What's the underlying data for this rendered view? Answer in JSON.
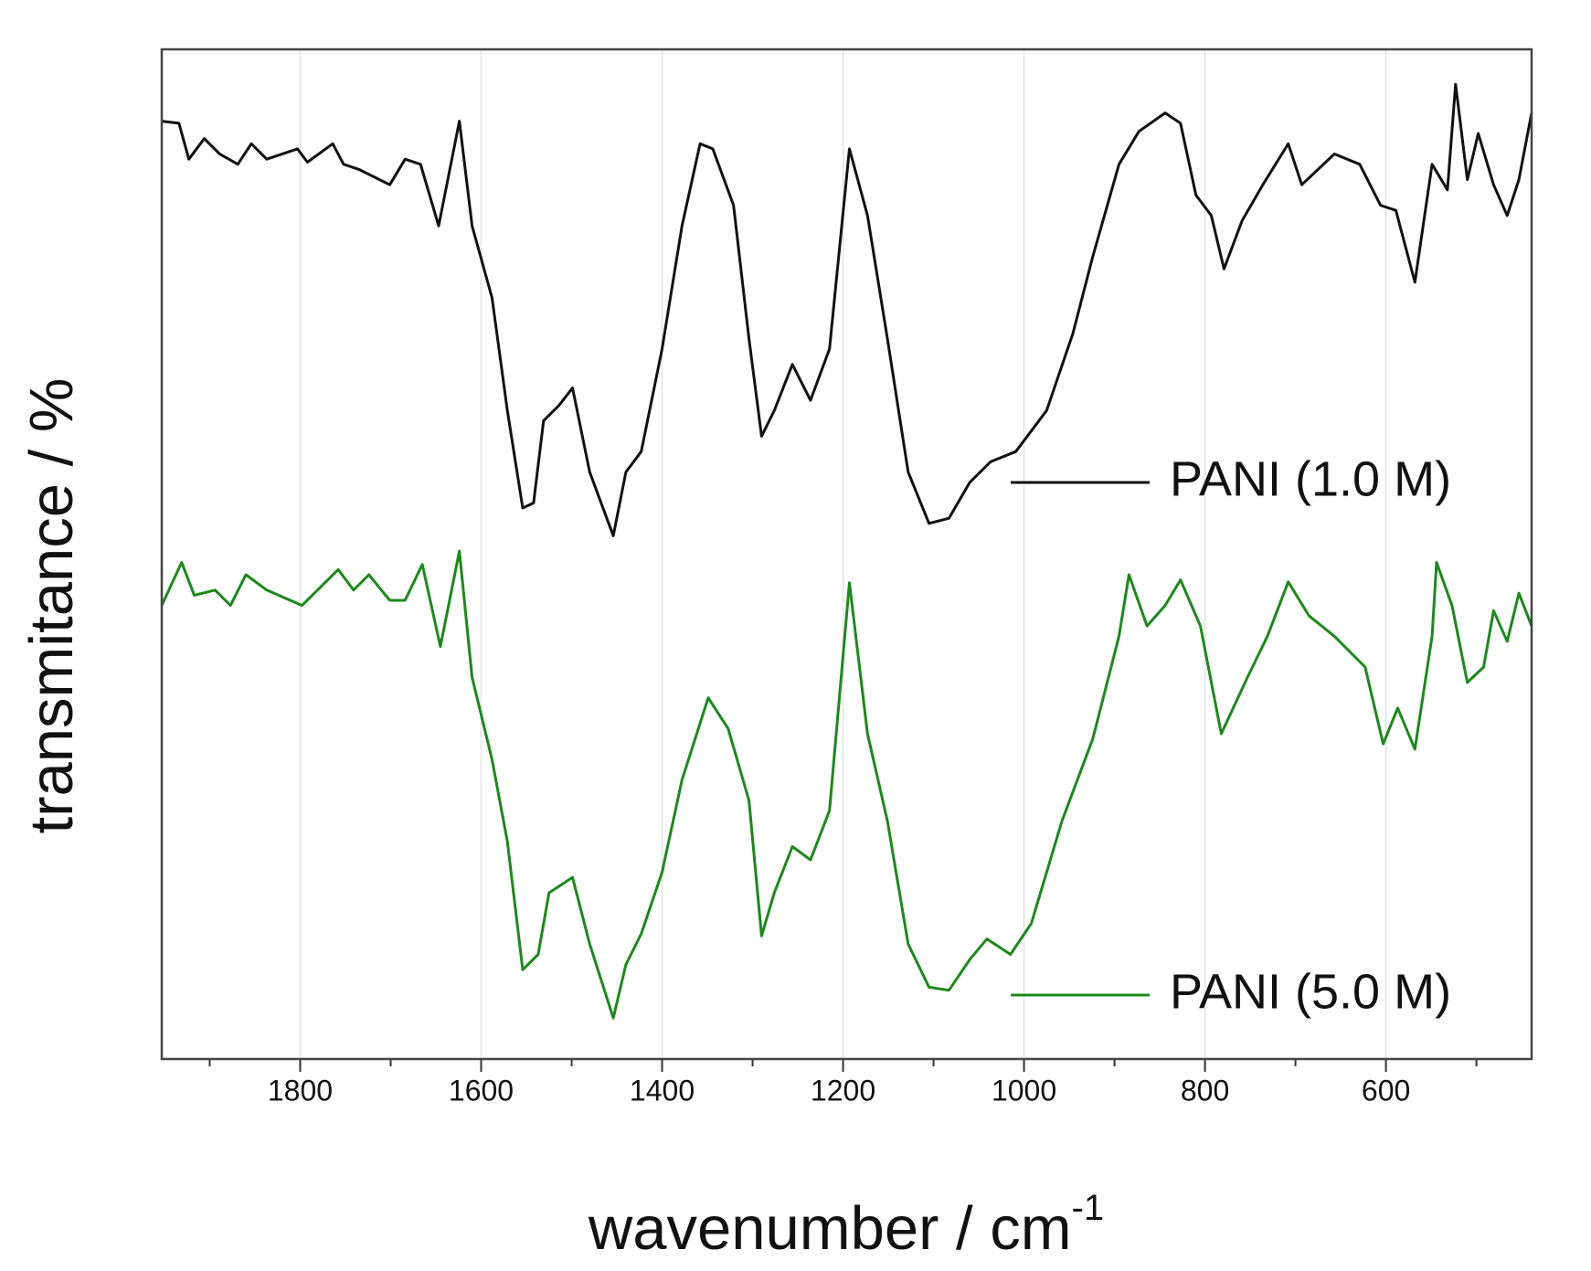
{
  "chart_data": {
    "type": "line",
    "xlabel": "wavenumber / cm",
    "xlabel_sup": "-1",
    "ylabel": "transmitance / %",
    "xlim": [
      1953,
      439
    ],
    "ylim": [
      0,
      984
    ],
    "xticks": [
      1800,
      1600,
      1400,
      1200,
      1000,
      800,
      600
    ],
    "xminorticks": [
      1900,
      1700,
      1500,
      1300,
      1100,
      900,
      700,
      500
    ],
    "grid": true,
    "series": [
      {
        "name": "PANI (1.0 M)",
        "color": "#111111",
        "x": [
          1953,
          1934,
          1923,
          1906,
          1889,
          1869,
          1854,
          1837,
          1803,
          1792,
          1764,
          1752,
          1735,
          1701,
          1684,
          1667,
          1647,
          1624,
          1610,
          1588,
          1571,
          1554,
          1542,
          1531,
          1514,
          1499,
          1480,
          1454,
          1440,
          1423,
          1400,
          1378,
          1358,
          1344,
          1321,
          1304,
          1290,
          1276,
          1256,
          1236,
          1215,
          1193,
          1173,
          1151,
          1128,
          1105,
          1083,
          1060,
          1037,
          1009,
          975,
          946,
          924,
          895,
          873,
          844,
          827,
          810,
          793,
          779,
          759,
          736,
          708,
          693,
          657,
          629,
          606,
          589,
          568,
          549,
          532,
          523,
          510,
          498,
          481,
          466,
          453,
          439
        ],
        "values": [
          914,
          912,
          877,
          897,
          882,
          872,
          892,
          877,
          887,
          874,
          892,
          872,
          867,
          852,
          877,
          872,
          812,
          914,
          812,
          742,
          632,
          537,
          542,
          622,
          637,
          654,
          572,
          510,
          572,
          592,
          692,
          812,
          892,
          887,
          832,
          702,
          607,
          632,
          677,
          642,
          692,
          887,
          822,
          702,
          572,
          522,
          527,
          562,
          582,
          592,
          632,
          707,
          782,
          872,
          904,
          922,
          912,
          842,
          822,
          770,
          817,
          852,
          892,
          852,
          882,
          872,
          832,
          827,
          757,
          872,
          847,
          950,
          857,
          902,
          852,
          822,
          857,
          922
        ]
      },
      {
        "name": "PANI (5.0 M)",
        "color": "#1a8a1a",
        "x": [
          1953,
          1931,
          1917,
          1894,
          1877,
          1860,
          1837,
          1798,
          1758,
          1741,
          1724,
          1701,
          1684,
          1665,
          1645,
          1624,
          1610,
          1588,
          1571,
          1554,
          1537,
          1525,
          1499,
          1480,
          1454,
          1440,
          1423,
          1400,
          1378,
          1349,
          1327,
          1304,
          1290,
          1276,
          1256,
          1236,
          1215,
          1193,
          1173,
          1151,
          1128,
          1105,
          1083,
          1060,
          1041,
          1015,
          992,
          958,
          924,
          895,
          884,
          864,
          844,
          827,
          805,
          782,
          753,
          731,
          708,
          685,
          657,
          623,
          603,
          587,
          568,
          549,
          544,
          527,
          510,
          492,
          481,
          466,
          453,
          439
        ],
        "values": [
          442,
          484,
          452,
          457,
          442,
          472,
          457,
          442,
          477,
          457,
          472,
          447,
          447,
          482,
          402,
          495,
          372,
          292,
          212,
          87,
          102,
          162,
          177,
          112,
          40,
          92,
          122,
          182,
          272,
          352,
          322,
          252,
          120,
          162,
          207,
          194,
          242,
          464,
          317,
          232,
          112,
          70,
          67,
          97,
          117,
          102,
          132,
          232,
          312,
          412,
          472,
          422,
          442,
          467,
          422,
          317,
          372,
          412,
          465,
          432,
          412,
          382,
          307,
          342,
          302,
          412,
          484,
          442,
          367,
          382,
          437,
          407,
          454,
          422
        ]
      }
    ]
  }
}
